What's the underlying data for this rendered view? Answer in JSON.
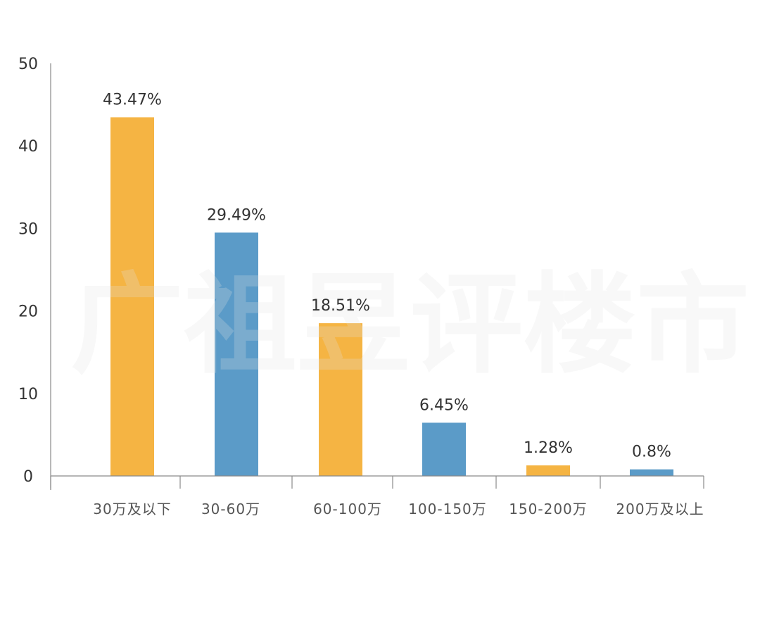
{
  "watermark": "广祖昱评楼市",
  "chart_data": {
    "type": "bar",
    "categories": [
      "30万及以下",
      "30-60万",
      "60-100万",
      "100-150万",
      "150-200万",
      "200万及以上"
    ],
    "values": [
      43.47,
      29.49,
      18.51,
      6.45,
      1.28,
      0.8
    ],
    "data_labels": [
      "43.47%",
      "29.49%",
      "18.51%",
      "6.45%",
      "1.28%",
      "0.8%"
    ],
    "bar_colors": [
      "#F5B443",
      "#5B9BC8",
      "#F5B443",
      "#5B9BC8",
      "#F5B443",
      "#5B9BC8"
    ],
    "title": "",
    "xlabel": "",
    "ylabel": "",
    "ylim": [
      0,
      50
    ],
    "yticks": [
      "0",
      "10",
      "20",
      "30",
      "40",
      "50"
    ],
    "grid": false,
    "legend": "none"
  }
}
